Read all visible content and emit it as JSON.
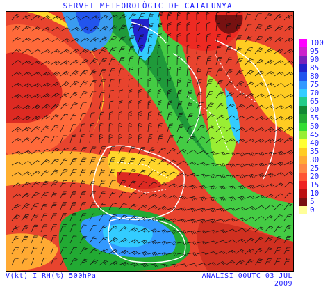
{
  "title": "SERVEI METEOROLÒGIC DE CATALUNYA",
  "footer": {
    "left": "V(kt) I RH(%) 500hPa",
    "right": "ANÀLISI 00UTC 03 JUL 2009"
  },
  "legend": {
    "items": [
      {
        "label": "100",
        "color": "#ff00ff"
      },
      {
        "label": "95",
        "color": "#cc22cc"
      },
      {
        "label": "90",
        "color": "#7722bb"
      },
      {
        "label": "85",
        "color": "#2222cc"
      },
      {
        "label": "80",
        "color": "#2255ee"
      },
      {
        "label": "75",
        "color": "#3399ff"
      },
      {
        "label": "70",
        "color": "#33ccff"
      },
      {
        "label": "65",
        "color": "#22cc88"
      },
      {
        "label": "60",
        "color": "#118833"
      },
      {
        "label": "55",
        "color": "#22aa33"
      },
      {
        "label": "50",
        "color": "#33dd33"
      },
      {
        "label": "45",
        "color": "#99ee33"
      },
      {
        "label": "40",
        "color": "#ffff33"
      },
      {
        "label": "35",
        "color": "#ffcc22"
      },
      {
        "label": "30",
        "color": "#ffaa33"
      },
      {
        "label": "25",
        "color": "#ff8844"
      },
      {
        "label": "20",
        "color": "#ff5533"
      },
      {
        "label": "15",
        "color": "#ee2222"
      },
      {
        "label": "10",
        "color": "#bb1111"
      },
      {
        "label": "5",
        "color": "#771111"
      },
      {
        "label": "0",
        "color": "#ffff99"
      }
    ]
  }
}
